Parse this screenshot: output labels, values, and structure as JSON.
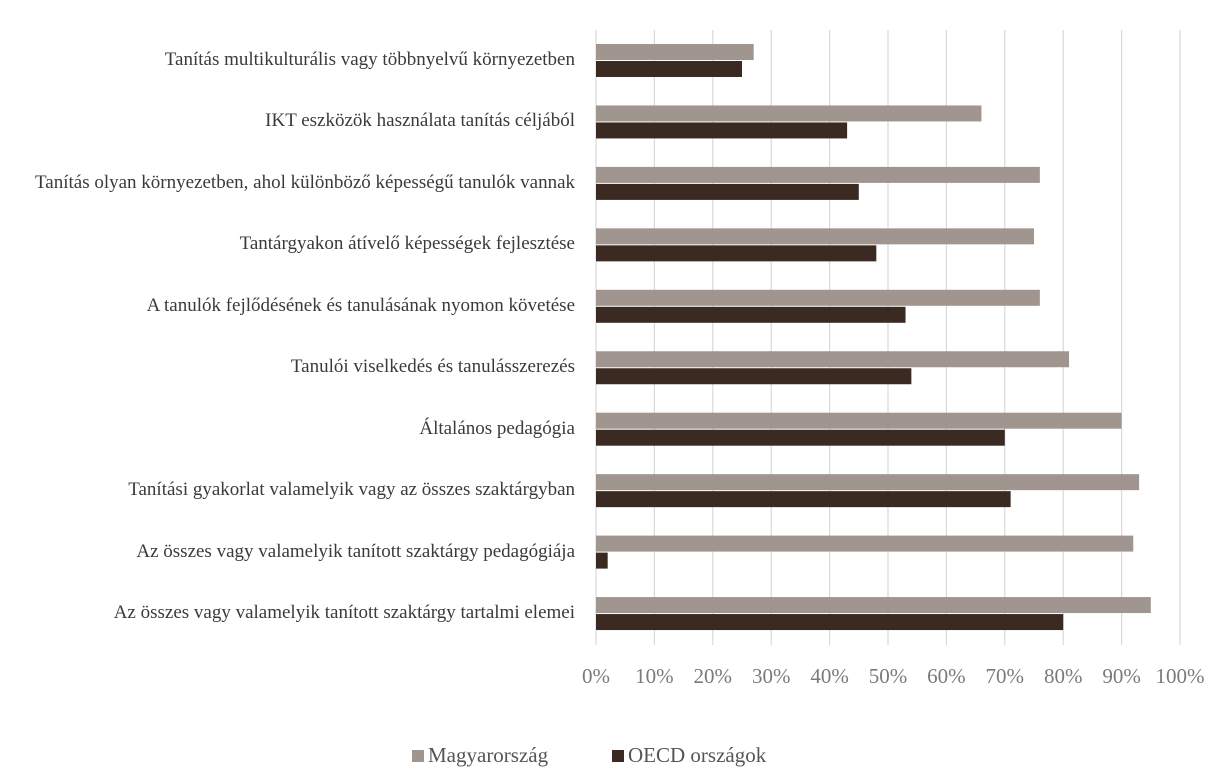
{
  "chart_data": {
    "type": "hbar",
    "categories": [
      "Tanítás multikulturális vagy többnyelvű környezetben",
      "IKT eszközök használata tanítás céljából",
      "Tanítás olyan környezetben, ahol különböző képességű tanulók vannak",
      "Tantárgyakon átívelő képességek fejlesztése",
      "A tanulók fejlődésének és tanulásának nyomon követése",
      "Tanulói viselkedés és tanulásszerezés",
      "Általános pedagógia",
      "Tanítási gyakorlat valamelyik vagy az összes szaktárgyban",
      "Az összes vagy valamelyik tanított szaktárgy pedagógiája",
      "Az összes vagy valamelyik tanított szaktárgy tartalmi elemei"
    ],
    "series": [
      {
        "name": "Magyarország",
        "color": "#a0968f",
        "values": [
          27,
          66,
          76,
          75,
          76,
          81,
          90,
          93,
          92,
          95
        ]
      },
      {
        "name": "OECD országok",
        "color": "#3b2a22",
        "values": [
          25,
          43,
          45,
          48,
          53,
          54,
          70,
          71,
          2,
          80
        ]
      }
    ],
    "xlim": [
      0,
      100
    ],
    "xticks": [
      {
        "value": 0,
        "label": "0%"
      },
      {
        "value": 10,
        "label": "10%"
      },
      {
        "value": 20,
        "label": "20%"
      },
      {
        "value": 30,
        "label": "30%"
      },
      {
        "value": 40,
        "label": "40%"
      },
      {
        "value": 50,
        "label": "50%"
      },
      {
        "value": 60,
        "label": "60%"
      },
      {
        "value": 70,
        "label": "70%"
      },
      {
        "value": 80,
        "label": "80%"
      },
      {
        "value": 90,
        "label": "90%"
      },
      {
        "value": 100,
        "label": "100%"
      }
    ],
    "grid": true,
    "legend": "bottom"
  }
}
